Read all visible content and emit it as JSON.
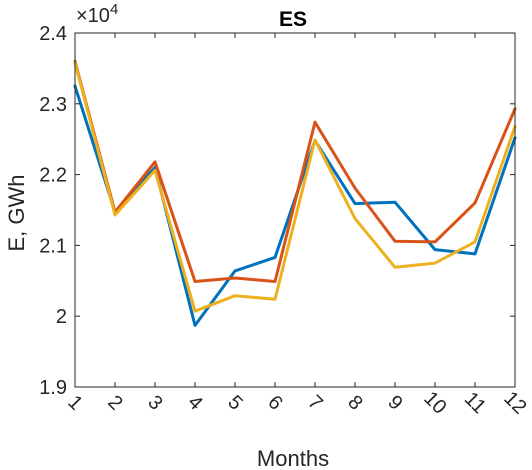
{
  "chart_data": {
    "type": "line",
    "title": "ES",
    "xlabel": "Months",
    "ylabel": "E, GWh",
    "y_exponent_label": "×10",
    "y_exponent_power": "4",
    "x": [
      1,
      2,
      3,
      4,
      5,
      6,
      7,
      8,
      9,
      10,
      11,
      12
    ],
    "x_tick_labels": [
      "1",
      "2",
      "3",
      "4",
      "5",
      "6",
      "7",
      "8",
      "9",
      "10",
      "11",
      "12"
    ],
    "xlim": [
      1,
      12
    ],
    "ylim": [
      1.9,
      2.4
    ],
    "y_ticks": [
      1.9,
      2,
      2.1,
      2.2,
      2.3,
      2.4
    ],
    "y_tick_labels": [
      "1.9",
      "2",
      "2.1",
      "2.2",
      "2.3",
      "2.4"
    ],
    "y_scale_factor": 10000,
    "grid": false,
    "legend": "none",
    "series": [
      {
        "color": "#0072BD",
        "values": [
          2.325,
          2.147,
          2.21,
          1.987,
          2.064,
          2.083,
          2.248,
          2.159,
          2.161,
          2.094,
          2.088,
          2.252
        ]
      },
      {
        "color": "#D95319",
        "values": [
          2.36,
          2.147,
          2.218,
          2.049,
          2.054,
          2.049,
          2.274,
          2.181,
          2.106,
          2.105,
          2.16,
          2.293
        ]
      },
      {
        "color": "#EDB120",
        "values": [
          2.358,
          2.143,
          2.206,
          2.007,
          2.029,
          2.024,
          2.249,
          2.138,
          2.069,
          2.075,
          2.105,
          2.268
        ]
      }
    ]
  }
}
